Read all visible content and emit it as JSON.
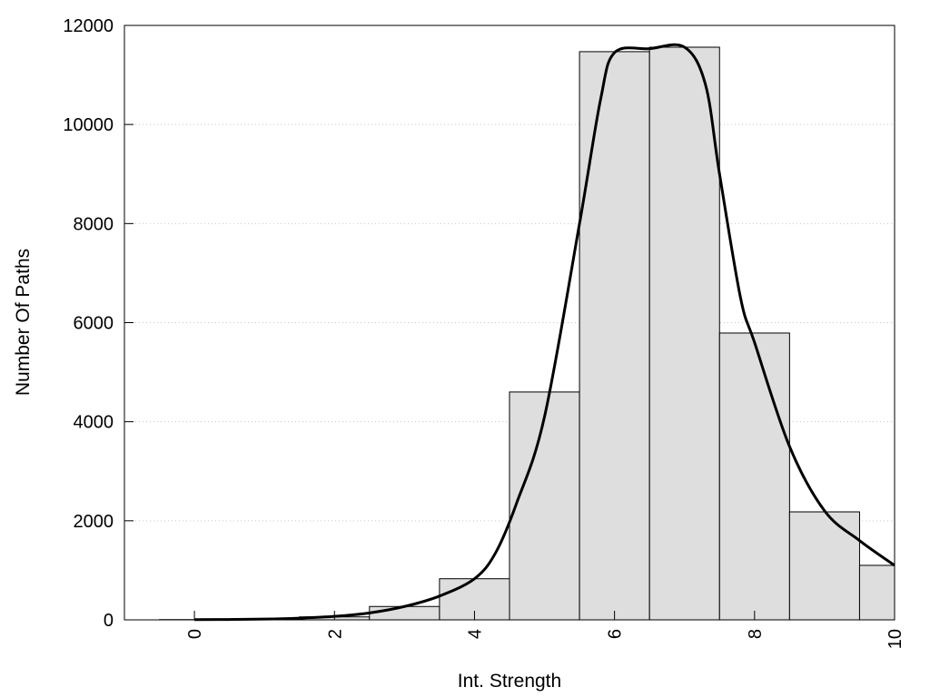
{
  "chart_data": {
    "type": "bar",
    "title": "",
    "xlabel": "Int. Strength",
    "ylabel": "Number Of Paths",
    "xlim": [
      -1,
      10
    ],
    "ylim": [
      0,
      12000
    ],
    "x_ticks": [
      0,
      2,
      4,
      6,
      8,
      10
    ],
    "y_ticks": [
      0,
      2000,
      4000,
      6000,
      8000,
      10000,
      12000
    ],
    "grid": "horizontal dotted",
    "bar_color": "#dedede",
    "line_color": "#000000",
    "bars": {
      "centers": [
        0,
        1,
        2,
        3,
        4,
        5,
        6,
        7,
        8,
        9,
        10
      ],
      "values": [
        5,
        15,
        60,
        270,
        830,
        4600,
        11470,
        11560,
        5790,
        2180,
        1100
      ]
    },
    "series": [
      {
        "type": "line",
        "x": [
          0,
          0.5,
          1,
          1.5,
          2,
          2.5,
          3,
          3.5,
          4,
          4.3,
          4.6,
          5,
          5.5,
          5.8,
          6,
          6.5,
          7,
          7.3,
          7.5,
          7.8,
          8,
          8.5,
          9,
          9.5,
          10
        ],
        "y": [
          5,
          8,
          15,
          35,
          70,
          140,
          270,
          480,
          830,
          1350,
          2350,
          4100,
          8000,
          10500,
          11450,
          11530,
          11560,
          10800,
          9000,
          6500,
          5600,
          3500,
          2200,
          1600,
          1100
        ]
      }
    ]
  }
}
